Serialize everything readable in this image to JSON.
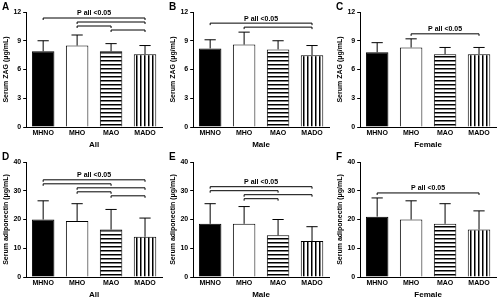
{
  "chart_data": [
    {
      "type": "bar",
      "panel": "A",
      "x_label": "All",
      "y_label": "Serum ZAG (μg/mL)",
      "categories": [
        "MHNO",
        "MHO",
        "MAO",
        "MADO"
      ],
      "values": [
        7.9,
        8.5,
        7.9,
        7.6
      ],
      "errors": [
        1.1,
        1.1,
        0.8,
        0.9
      ],
      "colors": [
        "#000000",
        "#ffffff",
        "#ffffff",
        "#ffffff"
      ],
      "ylim": [
        0,
        12
      ],
      "yticks": [
        0,
        3,
        6,
        9,
        12
      ],
      "annotation": {
        "text": "P all <0.05",
        "pairs": [
          [
            0,
            3
          ],
          [
            1,
            3
          ],
          [
            1,
            2
          ],
          [
            2,
            3
          ]
        ]
      }
    },
    {
      "type": "bar",
      "panel": "B",
      "x_label": "Male",
      "y_label": "Serum ZAG (μg/mL)",
      "categories": [
        "MHNO",
        "MHO",
        "MAO",
        "MADO"
      ],
      "values": [
        8.2,
        8.6,
        8.1,
        7.5
      ],
      "errors": [
        0.9,
        1.3,
        0.9,
        1.0
      ],
      "colors": [
        "#000000",
        "#ffffff",
        "#ffffff",
        "#ffffff"
      ],
      "ylim": [
        0,
        12
      ],
      "yticks": [
        0,
        3,
        6,
        9,
        12
      ],
      "annotation": {
        "text": "P all <0.05",
        "pairs": [
          [
            0,
            3
          ],
          [
            1,
            3
          ]
        ]
      }
    },
    {
      "type": "bar",
      "panel": "C",
      "x_label": "Female",
      "y_label": "Serum ZAG (μg/mL)",
      "categories": [
        "MHNO",
        "MHO",
        "MAO",
        "MADO"
      ],
      "values": [
        7.8,
        8.3,
        7.6,
        7.6
      ],
      "errors": [
        1.0,
        0.9,
        0.7,
        0.7
      ],
      "colors": [
        "#000000",
        "#ffffff",
        "#ffffff",
        "#ffffff"
      ],
      "ylim": [
        0,
        12
      ],
      "yticks": [
        0,
        3,
        6,
        9,
        12
      ],
      "annotation": {
        "text": "P all <0.05",
        "pairs": [
          [
            1,
            3
          ]
        ]
      }
    },
    {
      "type": "bar",
      "panel": "D",
      "x_label": "All",
      "y_label": "Serum adiponectin (μg/mL)",
      "categories": [
        "MHNO",
        "MHO",
        "MAO",
        "MADO"
      ],
      "values": [
        20,
        19.5,
        16.5,
        14
      ],
      "errors": [
        6.5,
        6,
        7,
        6.5
      ],
      "colors": [
        "#000000",
        "#ffffff",
        "#ffffff",
        "#ffffff"
      ],
      "ylim": [
        0,
        40
      ],
      "yticks": [
        0,
        10,
        20,
        30,
        40
      ],
      "annotation": {
        "text": "P all <0.05",
        "pairs": [
          [
            0,
            3
          ],
          [
            0,
            2
          ],
          [
            1,
            3
          ],
          [
            1,
            2
          ],
          [
            2,
            3
          ]
        ]
      }
    },
    {
      "type": "bar",
      "panel": "E",
      "x_label": "Male",
      "y_label": "Serum adiponectin (μg/mL)",
      "categories": [
        "MHNO",
        "MHO",
        "MAO",
        "MADO"
      ],
      "values": [
        18.5,
        18.5,
        14.5,
        12.5
      ],
      "errors": [
        7,
        6,
        5.5,
        5
      ],
      "colors": [
        "#000000",
        "#ffffff",
        "#ffffff",
        "#ffffff"
      ],
      "ylim": [
        0,
        40
      ],
      "yticks": [
        0,
        10,
        20,
        30,
        40
      ],
      "annotation": {
        "text": "P all <0.05",
        "pairs": [
          [
            0,
            3
          ],
          [
            0,
            2
          ],
          [
            1,
            3
          ],
          [
            1,
            2
          ]
        ]
      }
    },
    {
      "type": "bar",
      "panel": "F",
      "x_label": "Female",
      "y_label": "Serum adiponectin (μg/mL)",
      "categories": [
        "MHNO",
        "MHO",
        "MAO",
        "MADO"
      ],
      "values": [
        21,
        20,
        18.5,
        16.5
      ],
      "errors": [
        6.5,
        6.5,
        7,
        6.5
      ],
      "colors": [
        "#000000",
        "#ffffff",
        "#ffffff",
        "#ffffff"
      ],
      "ylim": [
        0,
        40
      ],
      "yticks": [
        0,
        10,
        20,
        30,
        40
      ],
      "annotation": {
        "text": "P all <0.05",
        "pairs": [
          [
            0,
            3
          ]
        ]
      }
    }
  ]
}
